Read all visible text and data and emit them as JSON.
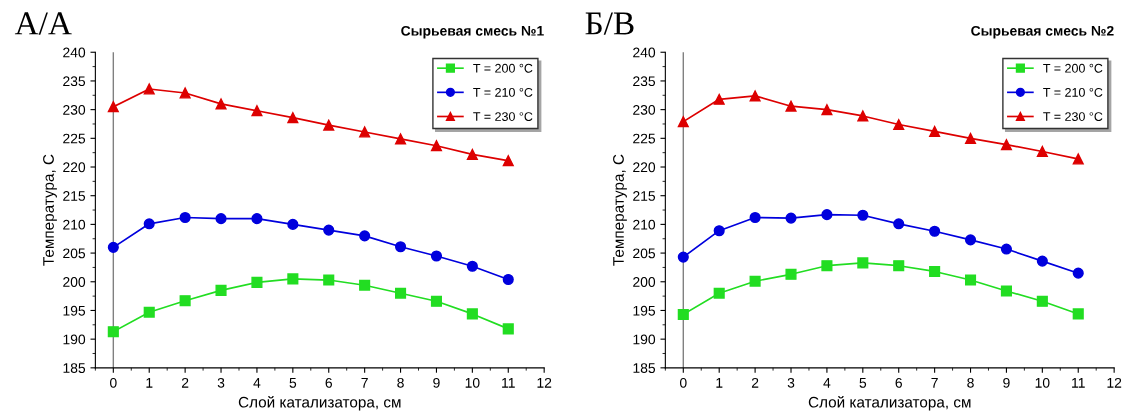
{
  "chart_data": [
    {
      "type": "line",
      "title": "Сырьевая смесь №1",
      "xlabel": "Слой катализатора, см",
      "ylabel": "Температура, С",
      "annotations": [
        "А/А"
      ],
      "x": [
        0,
        1,
        2,
        3,
        4,
        5,
        6,
        7,
        8,
        9,
        10,
        11
      ],
      "xlim": [
        -0.5,
        12
      ],
      "xticks": [
        0,
        1,
        2,
        3,
        4,
        5,
        6,
        7,
        8,
        9,
        10,
        11,
        12
      ],
      "ylim": [
        185,
        240
      ],
      "yticks": [
        185,
        190,
        195,
        200,
        205,
        210,
        215,
        220,
        225,
        230,
        235,
        240
      ],
      "grid": false,
      "legend": "top right",
      "ref_lines": [
        {
          "axis": "x",
          "value": 0,
          "color": "#808080"
        }
      ],
      "series": [
        {
          "name": "T = 200 °C",
          "color": "#22dd22",
          "marker": "square",
          "values": [
            191.3,
            194.7,
            196.7,
            198.5,
            199.9,
            200.5,
            200.3,
            199.4,
            198.0,
            196.6,
            194.4,
            191.8
          ]
        },
        {
          "name": "T = 210 °C",
          "color": "#0000dd",
          "marker": "circle",
          "values": [
            206.0,
            210.1,
            211.2,
            211.0,
            211.0,
            210.0,
            209.0,
            208.0,
            206.1,
            204.5,
            202.7,
            200.4
          ]
        },
        {
          "name": "T = 230 °C",
          "color": "#dd0000",
          "marker": "triangle",
          "values": [
            230.5,
            233.6,
            232.9,
            231.0,
            229.8,
            228.6,
            227.3,
            226.1,
            224.9,
            223.7,
            222.2,
            221.1
          ]
        }
      ]
    },
    {
      "type": "line",
      "title": "Сырьевая смесь №2",
      "xlabel": "Слой катализатора, см",
      "ylabel": "Температура, С",
      "annotations": [
        "Б/В"
      ],
      "x": [
        0,
        1,
        2,
        3,
        4,
        5,
        6,
        7,
        8,
        9,
        10,
        11
      ],
      "xlim": [
        -0.5,
        12
      ],
      "xticks": [
        0,
        1,
        2,
        3,
        4,
        5,
        6,
        7,
        8,
        9,
        10,
        11,
        12
      ],
      "ylim": [
        185,
        240
      ],
      "yticks": [
        185,
        190,
        195,
        200,
        205,
        210,
        215,
        220,
        225,
        230,
        235,
        240
      ],
      "grid": false,
      "legend": "top right",
      "ref_lines": [
        {
          "axis": "x",
          "value": 0,
          "color": "#808080"
        }
      ],
      "series": [
        {
          "name": "T = 200 °C",
          "color": "#22dd22",
          "marker": "square",
          "values": [
            194.3,
            198.0,
            200.1,
            201.3,
            202.8,
            203.3,
            202.8,
            201.8,
            200.3,
            198.4,
            196.6,
            194.4
          ]
        },
        {
          "name": "T = 210 °C",
          "color": "#0000dd",
          "marker": "circle",
          "values": [
            204.3,
            208.9,
            211.2,
            211.1,
            211.7,
            211.6,
            210.1,
            208.8,
            207.3,
            205.7,
            203.6,
            201.5
          ]
        },
        {
          "name": "T = 230 °C",
          "color": "#dd0000",
          "marker": "triangle",
          "values": [
            227.9,
            231.8,
            232.4,
            230.6,
            230.0,
            228.9,
            227.4,
            226.2,
            225.0,
            223.9,
            222.7,
            221.4
          ]
        }
      ]
    }
  ]
}
